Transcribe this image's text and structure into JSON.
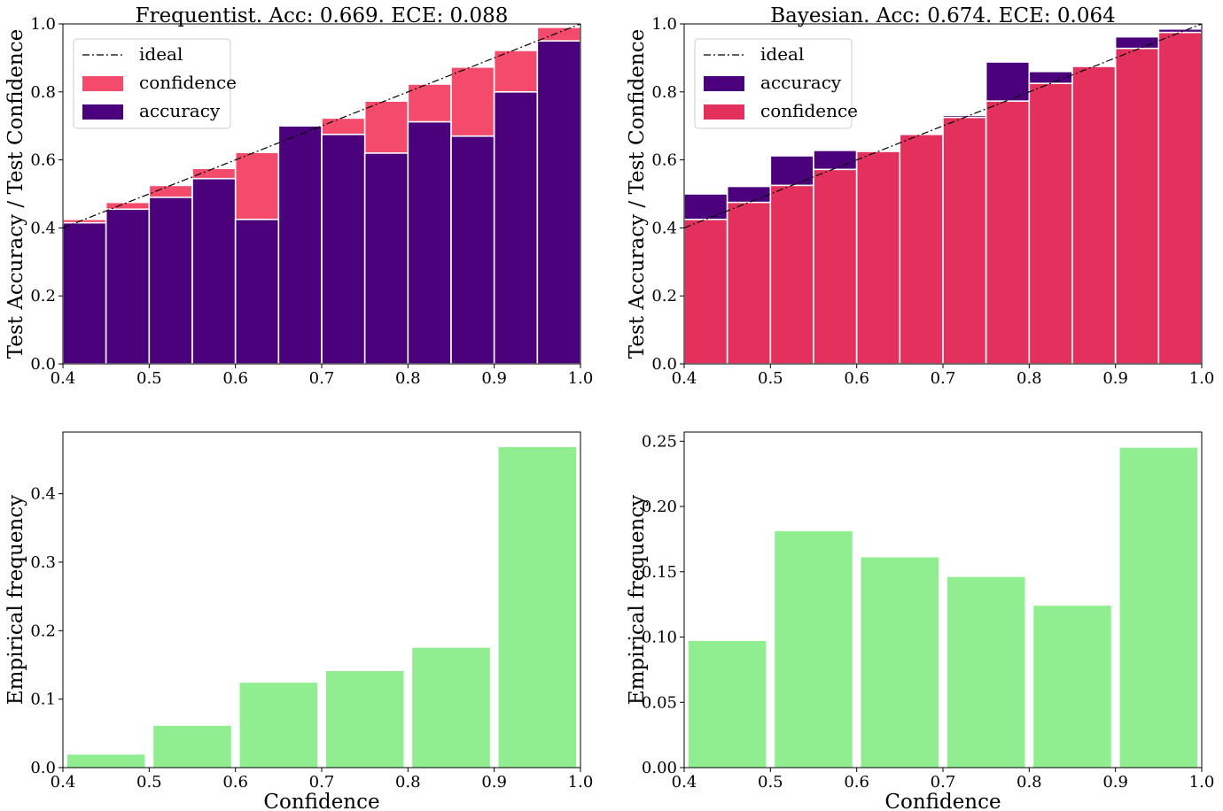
{
  "chart_data": [
    {
      "type": "bar",
      "subtype": "reliability-diagram",
      "title": "Frequentist. Acc: 0.669. ECE: 0.088",
      "xlabel": "",
      "ylabel": "Test Accuracy / Test Confidence",
      "xlim": [
        0.4,
        1.0
      ],
      "ylim": [
        0.0,
        1.0
      ],
      "xticks": [
        "0.4",
        "0.5",
        "0.6",
        "0.7",
        "0.8",
        "0.9",
        "1.0"
      ],
      "yticks": [
        "0.0",
        "0.2",
        "0.4",
        "0.6",
        "0.8",
        "1.0"
      ],
      "bin_edges": [
        0.4,
        0.45,
        0.5,
        0.55,
        0.6,
        0.65,
        0.7,
        0.75,
        0.8,
        0.85,
        0.9,
        0.95,
        1.0
      ],
      "legend": {
        "placement": "top-left",
        "entries": [
          "ideal",
          "confidence",
          "accuracy"
        ]
      },
      "series": [
        {
          "name": "confidence",
          "color": "#f44b6d",
          "values": [
            0.425,
            0.475,
            0.525,
            0.575,
            0.622,
            0.68,
            0.723,
            0.773,
            0.823,
            0.873,
            0.922,
            0.99
          ]
        },
        {
          "name": "accuracy",
          "color": "#4b007c",
          "values": [
            0.415,
            0.455,
            0.49,
            0.545,
            0.425,
            0.7,
            0.675,
            0.62,
            0.712,
            0.67,
            0.8,
            0.95
          ]
        }
      ],
      "draw_order": [
        "confidence",
        "accuracy"
      ]
    },
    {
      "type": "bar",
      "subtype": "reliability-diagram",
      "title": "Bayesian. Acc: 0.674. ECE: 0.064",
      "xlabel": "",
      "ylabel": "Test Accuracy / Test Confidence",
      "xlim": [
        0.4,
        1.0
      ],
      "ylim": [
        0.0,
        1.0
      ],
      "xticks": [
        "0.4",
        "0.5",
        "0.6",
        "0.7",
        "0.8",
        "0.9",
        "1.0"
      ],
      "yticks": [
        "0.0",
        "0.2",
        "0.4",
        "0.6",
        "0.8",
        "1.0"
      ],
      "bin_edges": [
        0.4,
        0.45,
        0.5,
        0.55,
        0.6,
        0.65,
        0.7,
        0.75,
        0.8,
        0.85,
        0.9,
        0.95,
        1.0
      ],
      "legend": {
        "placement": "top-left",
        "entries": [
          "ideal",
          "accuracy",
          "confidence"
        ]
      },
      "series": [
        {
          "name": "accuracy",
          "color": "#4b007c",
          "values": [
            0.5,
            0.522,
            0.612,
            0.628,
            0.625,
            0.675,
            0.731,
            0.888,
            0.86,
            0.875,
            0.962,
            0.985
          ]
        },
        {
          "name": "confidence",
          "color": "#e3305d",
          "values": [
            0.425,
            0.475,
            0.525,
            0.572,
            0.625,
            0.675,
            0.725,
            0.773,
            0.825,
            0.875,
            0.928,
            0.975
          ]
        }
      ],
      "draw_order": [
        "accuracy",
        "confidence"
      ]
    },
    {
      "type": "bar",
      "subtype": "histogram",
      "title": "",
      "xlabel": "Confidence",
      "ylabel": "Empirical frequency",
      "xlim": [
        0.4,
        1.0
      ],
      "ylim": [
        0.0,
        0.49
      ],
      "xticks": [
        "0.4",
        "0.5",
        "0.6",
        "0.7",
        "0.8",
        "0.9",
        "1.0"
      ],
      "yticks": [
        "0.0",
        "0.1",
        "0.2",
        "0.3",
        "0.4"
      ],
      "bin_edges": [
        0.4,
        0.5,
        0.6,
        0.7,
        0.8,
        0.9,
        1.0
      ],
      "series": [
        {
          "name": "",
          "color": "#90ee90",
          "values": [
            0.019,
            0.061,
            0.124,
            0.141,
            0.175,
            0.468
          ]
        }
      ]
    },
    {
      "type": "bar",
      "subtype": "histogram",
      "title": "",
      "xlabel": "Confidence",
      "ylabel": "Empirical frequency",
      "xlim": [
        0.4,
        1.0
      ],
      "ylim": [
        0.0,
        0.257
      ],
      "xticks": [
        "0.4",
        "0.5",
        "0.6",
        "0.7",
        "0.8",
        "0.9",
        "1.0"
      ],
      "yticks": [
        "0.00",
        "0.05",
        "0.10",
        "0.15",
        "0.20",
        "0.25"
      ],
      "bin_edges": [
        0.4,
        0.5,
        0.6,
        0.7,
        0.8,
        0.9,
        1.0
      ],
      "series": [
        {
          "name": "",
          "color": "#90ee90",
          "values": [
            0.097,
            0.181,
            0.161,
            0.146,
            0.124,
            0.245
          ]
        }
      ]
    }
  ]
}
